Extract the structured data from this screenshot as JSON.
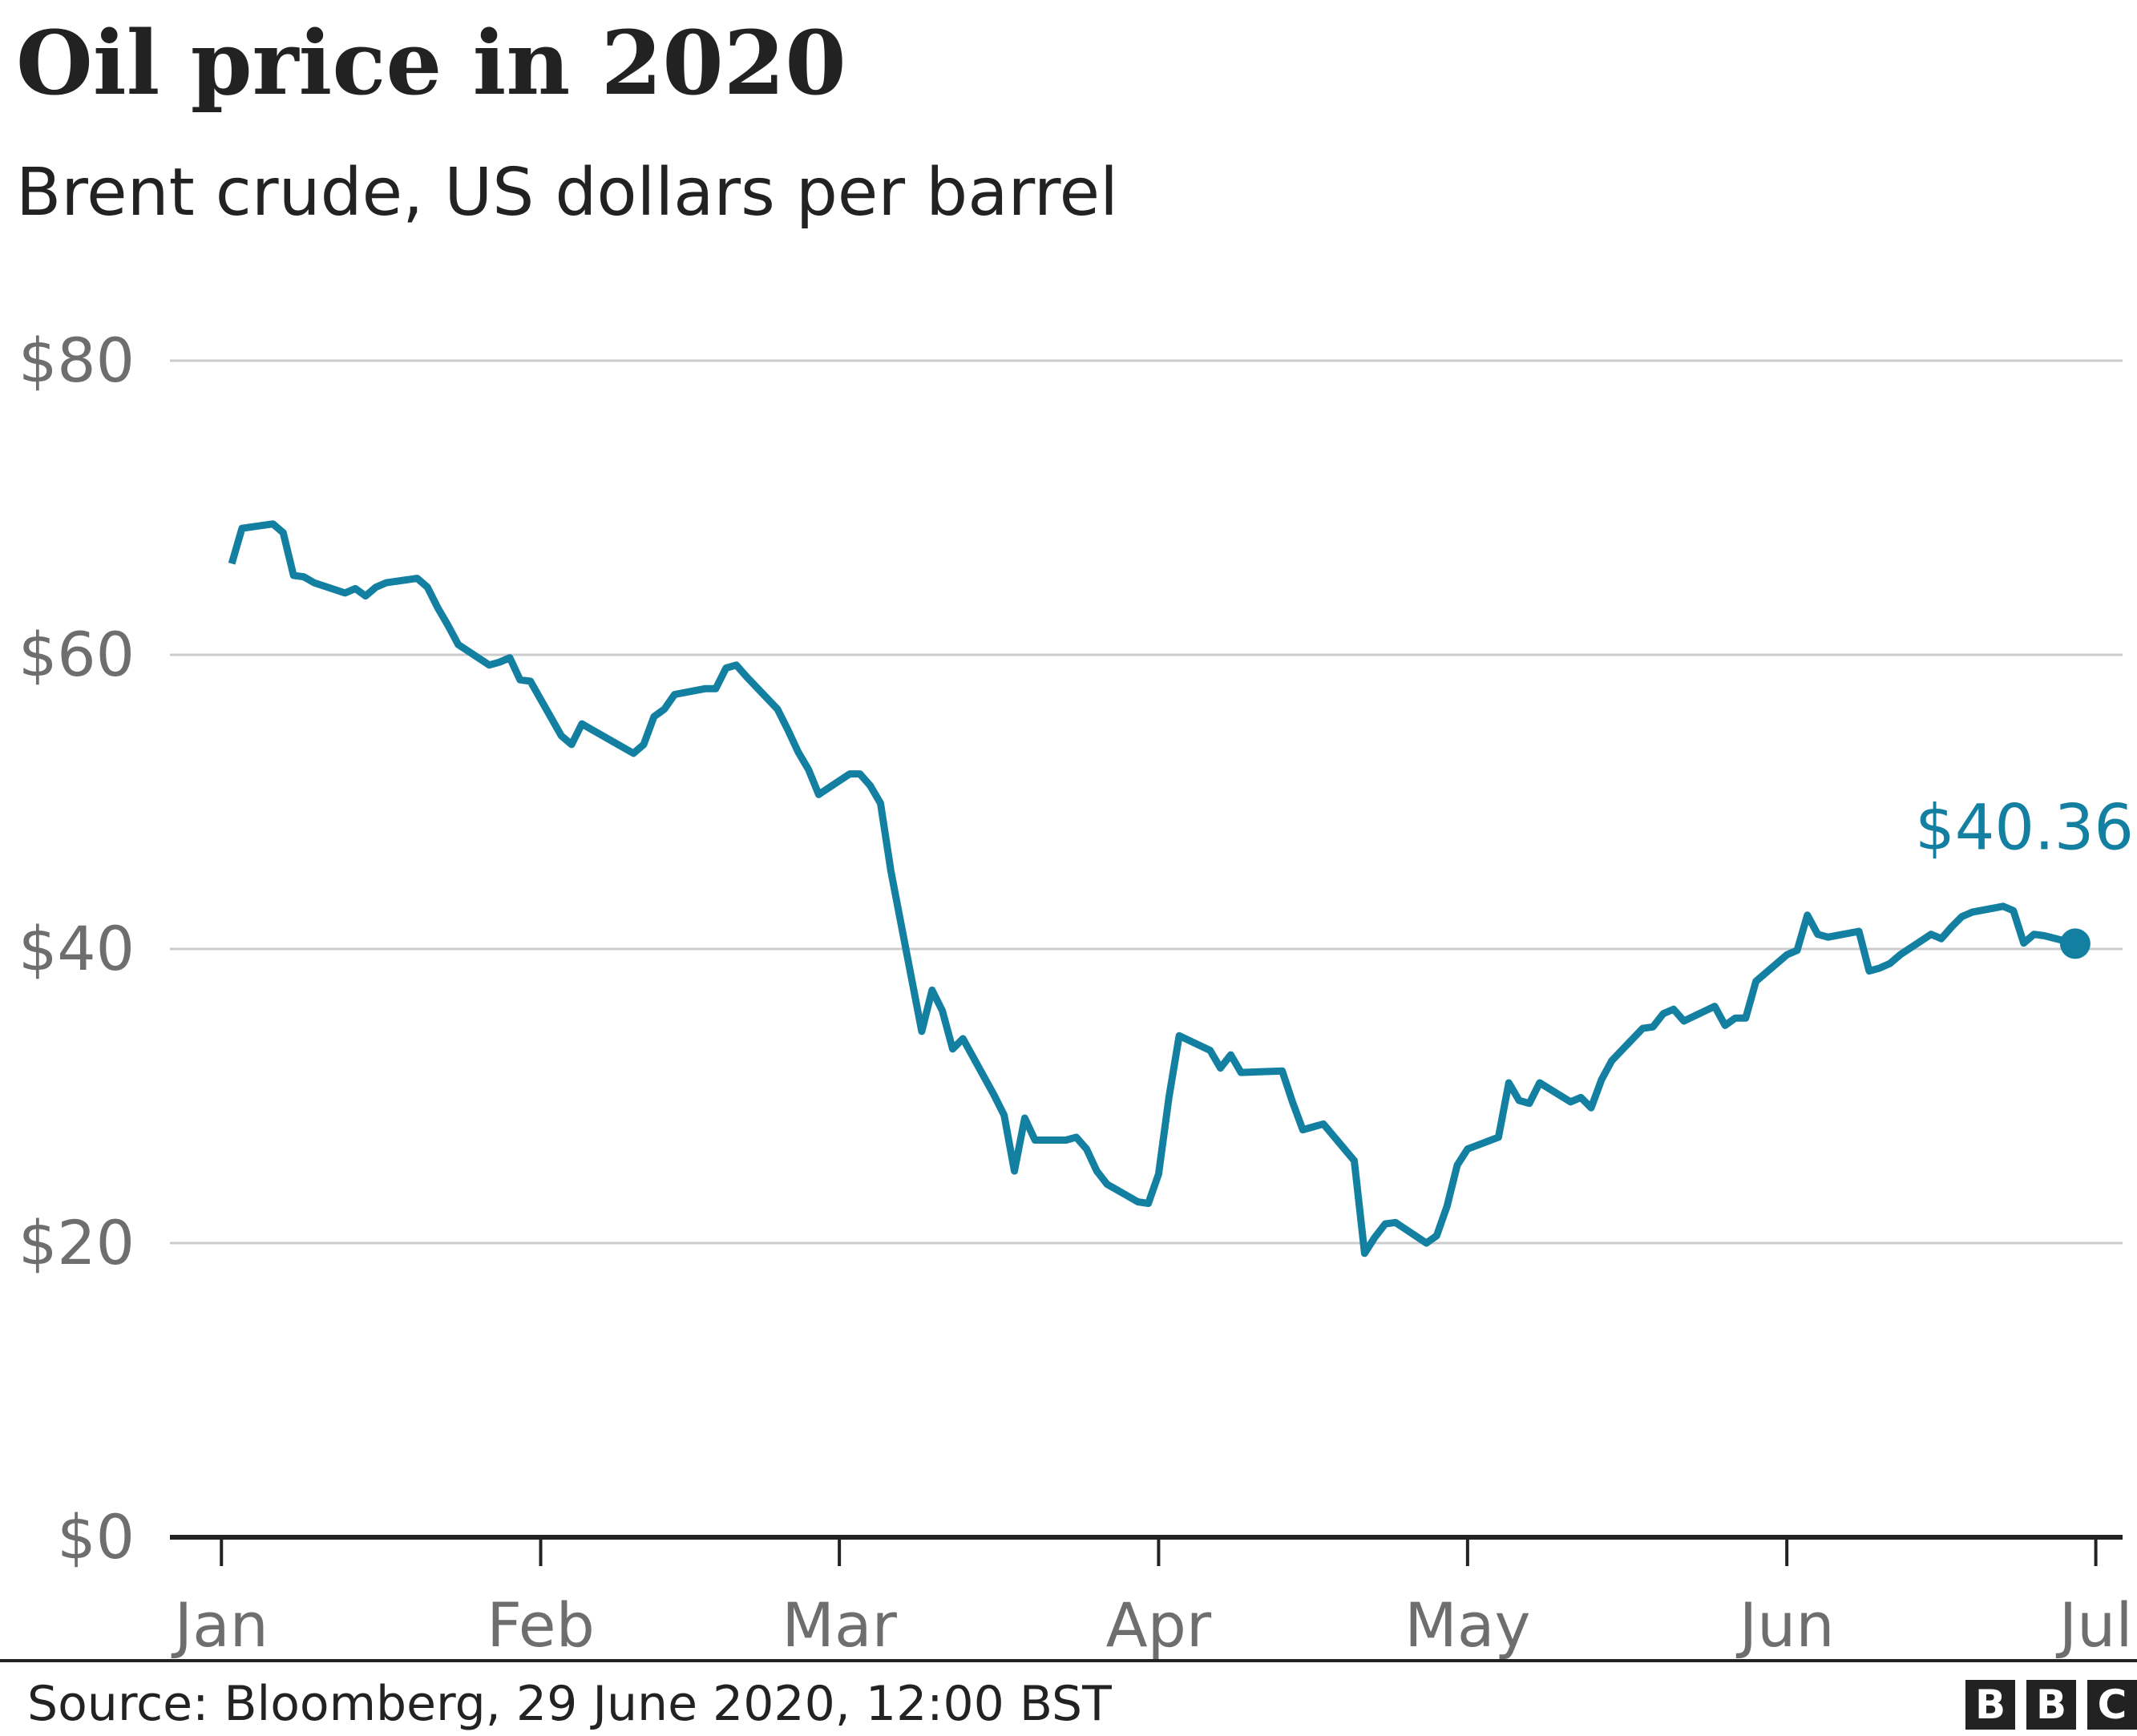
{
  "chart_data": {
    "type": "line",
    "title": "Oil price in 2020",
    "subtitle": "Brent crude, US dollars per barrel",
    "xlabel": "",
    "ylabel": "",
    "ylim": [
      0,
      80
    ],
    "yticks": [
      0,
      20,
      40,
      60,
      80
    ],
    "ytick_labels": [
      "$0",
      "$20",
      "$40",
      "$60",
      "$80"
    ],
    "xtick_labels": [
      "Jan",
      "Feb",
      "Mar",
      "Apr",
      "May",
      "Jun",
      "Jul"
    ],
    "xtick_dates": [
      "2020-01-01",
      "2020-02-01",
      "2020-03-01",
      "2020-04-01",
      "2020-05-01",
      "2020-06-01",
      "2020-07-01"
    ],
    "xlim": [
      "2020-01-01",
      "2020-07-01"
    ],
    "grid": true,
    "legend": "none",
    "series": [
      {
        "color": "#1380a1",
        "x": [
          "2020-01-02",
          "2020-01-03",
          "2020-01-06",
          "2020-01-07",
          "2020-01-08",
          "2020-01-09",
          "2020-01-10",
          "2020-01-13",
          "2020-01-14",
          "2020-01-15",
          "2020-01-16",
          "2020-01-17",
          "2020-01-20",
          "2020-01-21",
          "2020-01-22",
          "2020-01-23",
          "2020-01-24",
          "2020-01-27",
          "2020-01-28",
          "2020-01-29",
          "2020-01-30",
          "2020-01-31",
          "2020-02-03",
          "2020-02-04",
          "2020-02-05",
          "2020-02-06",
          "2020-02-07",
          "2020-02-10",
          "2020-02-11",
          "2020-02-12",
          "2020-02-13",
          "2020-02-14",
          "2020-02-17",
          "2020-02-18",
          "2020-02-19",
          "2020-02-20",
          "2020-02-21",
          "2020-02-24",
          "2020-02-25",
          "2020-02-26",
          "2020-02-27",
          "2020-02-28",
          "2020-03-02",
          "2020-03-03",
          "2020-03-04",
          "2020-03-05",
          "2020-03-06",
          "2020-03-09",
          "2020-03-10",
          "2020-03-11",
          "2020-03-12",
          "2020-03-13",
          "2020-03-16",
          "2020-03-17",
          "2020-03-18",
          "2020-03-19",
          "2020-03-20",
          "2020-03-23",
          "2020-03-24",
          "2020-03-25",
          "2020-03-26",
          "2020-03-27",
          "2020-03-30",
          "2020-03-31",
          "2020-04-01",
          "2020-04-02",
          "2020-04-03",
          "2020-04-06",
          "2020-04-07",
          "2020-04-08",
          "2020-04-09",
          "2020-04-13",
          "2020-04-14",
          "2020-04-15",
          "2020-04-16",
          "2020-04-17",
          "2020-04-20",
          "2020-04-21",
          "2020-04-22",
          "2020-04-23",
          "2020-04-24",
          "2020-04-27",
          "2020-04-28",
          "2020-04-29",
          "2020-04-30",
          "2020-05-01",
          "2020-05-04",
          "2020-05-05",
          "2020-05-06",
          "2020-05-07",
          "2020-05-08",
          "2020-05-11",
          "2020-05-12",
          "2020-05-13",
          "2020-05-14",
          "2020-05-15",
          "2020-05-18",
          "2020-05-19",
          "2020-05-20",
          "2020-05-21",
          "2020-05-22",
          "2020-05-25",
          "2020-05-26",
          "2020-05-27",
          "2020-05-28",
          "2020-05-29",
          "2020-06-01",
          "2020-06-02",
          "2020-06-03",
          "2020-06-04",
          "2020-06-05",
          "2020-06-08",
          "2020-06-09",
          "2020-06-10",
          "2020-06-11",
          "2020-06-12",
          "2020-06-15",
          "2020-06-16",
          "2020-06-17",
          "2020-06-18",
          "2020-06-19",
          "2020-06-22",
          "2020-06-23",
          "2020-06-24",
          "2020-06-25",
          "2020-06-26",
          "2020-06-29"
        ],
        "values": [
          66.2,
          68.6,
          68.9,
          68.3,
          65.4,
          65.3,
          64.9,
          64.2,
          64.5,
          64.0,
          64.6,
          64.9,
          65.2,
          64.6,
          63.2,
          62.0,
          60.7,
          59.3,
          59.5,
          59.8,
          58.3,
          58.2,
          54.5,
          53.9,
          55.3,
          54.9,
          54.5,
          53.3,
          53.9,
          55.8,
          56.3,
          57.3,
          57.7,
          57.7,
          59.1,
          59.3,
          58.5,
          56.3,
          54.9,
          53.4,
          52.2,
          50.5,
          51.9,
          51.9,
          51.1,
          49.9,
          45.3,
          34.4,
          37.2,
          35.8,
          33.2,
          33.9,
          30.1,
          28.7,
          24.9,
          28.5,
          27.0,
          27.0,
          27.2,
          26.4,
          24.9,
          24.0,
          22.8,
          22.7,
          24.7,
          29.9,
          34.1,
          33.1,
          31.9,
          32.8,
          31.6,
          31.7,
          29.6,
          27.7,
          27.9,
          28.1,
          25.6,
          19.3,
          20.4,
          21.3,
          21.4,
          20.0,
          20.5,
          22.5,
          25.3,
          26.4,
          27.2,
          30.9,
          29.7,
          29.5,
          30.9,
          29.6,
          29.9,
          29.2,
          31.1,
          32.4,
          34.6,
          34.7,
          35.6,
          35.9,
          35.1,
          36.1,
          34.8,
          35.3,
          35.3,
          37.8,
          39.6,
          39.9,
          42.3,
          41.0,
          40.8,
          41.2,
          38.5,
          38.7,
          39.0,
          39.6,
          41.0,
          40.7,
          41.5,
          42.2,
          42.5,
          42.9,
          42.6,
          40.4,
          41.0,
          40.9,
          40.36
        ]
      }
    ],
    "annotations": [
      {
        "text": "$40.36",
        "x": "2020-06-29",
        "y": 40.36
      }
    ]
  },
  "footer": {
    "source": "Source: Bloomberg, 29 June 2020, 12:00 BST",
    "logo_letters": [
      "B",
      "B",
      "C"
    ]
  },
  "colors": {
    "line": "#1380a1",
    "text": "#222222",
    "ticks": "#6e6e6e",
    "grid": "#cccccc",
    "axis": "#222222"
  }
}
